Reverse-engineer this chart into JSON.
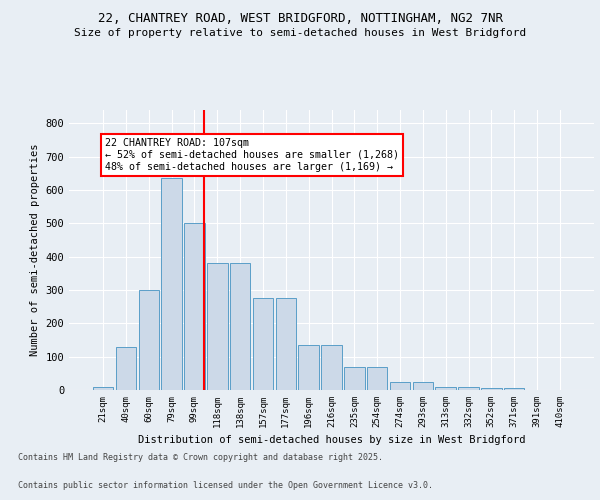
{
  "title1": "22, CHANTREY ROAD, WEST BRIDGFORD, NOTTINGHAM, NG2 7NR",
  "title2": "Size of property relative to semi-detached houses in West Bridgford",
  "xlabel": "Distribution of semi-detached houses by size in West Bridgford",
  "ylabel": "Number of semi-detached properties",
  "categories": [
    "21sqm",
    "40sqm",
    "60sqm",
    "79sqm",
    "99sqm",
    "118sqm",
    "138sqm",
    "157sqm",
    "177sqm",
    "196sqm",
    "216sqm",
    "235sqm",
    "254sqm",
    "274sqm",
    "293sqm",
    "313sqm",
    "332sqm",
    "352sqm",
    "371sqm",
    "391sqm",
    "410sqm"
  ],
  "values": [
    8,
    130,
    300,
    635,
    500,
    380,
    380,
    275,
    275,
    135,
    135,
    70,
    70,
    25,
    25,
    10,
    10,
    5,
    5,
    0,
    0
  ],
  "bar_color": "#ccd9e8",
  "bar_edge_color": "#5a9ec8",
  "property_size": 107,
  "annotation_text": "22 CHANTREY ROAD: 107sqm\n← 52% of semi-detached houses are smaller (1,268)\n48% of semi-detached houses are larger (1,169) →",
  "annotation_box_color": "white",
  "annotation_box_edge_color": "red",
  "vline_color": "red",
  "ylim": [
    0,
    840
  ],
  "yticks": [
    0,
    100,
    200,
    300,
    400,
    500,
    600,
    700,
    800
  ],
  "background_color": "#e8eef4",
  "footer_line1": "Contains HM Land Registry data © Crown copyright and database right 2025.",
  "footer_line2": "Contains public sector information licensed under the Open Government Licence v3.0.",
  "bin_starts": [
    21,
    40,
    60,
    79,
    99,
    118,
    138,
    157,
    177,
    196,
    216,
    235,
    254,
    274,
    293,
    313,
    332,
    352,
    371,
    391,
    410
  ]
}
